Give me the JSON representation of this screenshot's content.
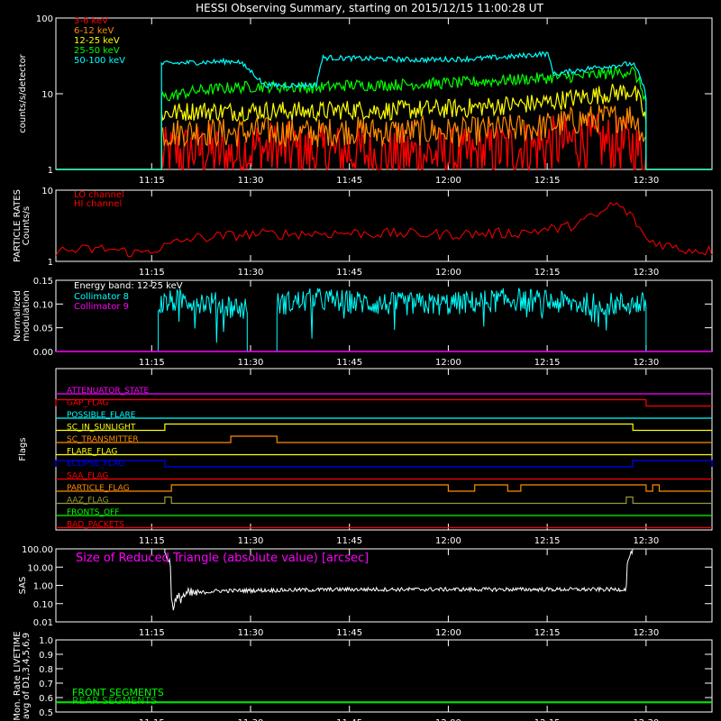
{
  "title": "HESSI Observing Summary, starting on 2015/12/15 11:00:28 UT",
  "time_ticks": [
    "11:15",
    "11:30",
    "11:45",
    "12:00",
    "12:15",
    "12:30"
  ],
  "colors": {
    "background": "#000000",
    "axes": "#ffffff",
    "red": "#ff0000",
    "orange": "#ff8c00",
    "yellow": "#ffff00",
    "green": "#00ff00",
    "cyan": "#00ffff",
    "magenta": "#ff00ff",
    "blue": "#0000ff",
    "sas_label": "#ff00ff",
    "livetime_label": "#00ff00"
  },
  "chart_data": [
    {
      "type": "line",
      "panel": "count_rates",
      "ylabel": "counts/s/detector",
      "yscale": "log",
      "ylim": [
        1,
        100
      ],
      "y_tick_labels": [
        "1",
        "10",
        "100"
      ],
      "xlim": [
        "11:00:28",
        "12:40"
      ],
      "grid": false,
      "legend_position": "top-left",
      "series": [
        {
          "name": "3-6 keV",
          "color": "#ff0000",
          "x": [
            "11:17",
            "11:22",
            "11:27",
            "11:31",
            "11:40",
            "11:45",
            "11:50",
            "11:56",
            "12:02",
            "12:08",
            "12:14",
            "12:20",
            "12:28",
            "12:31"
          ],
          "values": [
            1.5,
            1.8,
            1.5,
            1.9,
            1.6,
            1.7,
            1.5,
            1.6,
            1.4,
            1.8,
            2.0,
            2.4,
            2.0,
            1.0
          ]
        },
        {
          "name": "6-12 keV",
          "color": "#ff8c00",
          "x": [
            "11:17",
            "11:22",
            "11:27",
            "11:31",
            "11:40",
            "11:45",
            "11:50",
            "11:56",
            "12:02",
            "12:08",
            "12:14",
            "12:20",
            "12:28",
            "12:31"
          ],
          "values": [
            3.0,
            3.2,
            3.0,
            3.2,
            3.0,
            3.3,
            3.1,
            3.2,
            3.1,
            3.4,
            3.6,
            4.5,
            5.0,
            1.0
          ]
        },
        {
          "name": "12-25 keV",
          "color": "#ffff00",
          "x": [
            "11:17",
            "11:22",
            "11:27",
            "11:31",
            "11:40",
            "11:45",
            "11:50",
            "11:56",
            "12:02",
            "12:08",
            "12:14",
            "12:20",
            "12:28",
            "12:31"
          ],
          "values": [
            5.5,
            6.0,
            5.8,
            6.0,
            5.8,
            6.2,
            6.0,
            6.2,
            6.4,
            7.0,
            7.5,
            9.0,
            11.0,
            1.0
          ]
        },
        {
          "name": "25-50 keV",
          "color": "#00ff00",
          "x": [
            "11:17",
            "11:22",
            "11:27",
            "11:31",
            "11:40",
            "11:45",
            "11:50",
            "11:56",
            "12:02",
            "12:08",
            "12:14",
            "12:20",
            "12:28",
            "12:31"
          ],
          "values": [
            9.0,
            11.0,
            12.0,
            12.5,
            12.0,
            13.0,
            13.0,
            13.5,
            14.0,
            15.0,
            16.0,
            17.0,
            20.0,
            1.0
          ]
        },
        {
          "name": "50-100 keV",
          "color": "#00ffff",
          "x": [
            "11:17",
            "11:22",
            "11:28",
            "11:32",
            "11:40",
            "11:41",
            "11:48",
            "11:56",
            "12:04",
            "12:10",
            "12:15",
            "12:16",
            "12:22",
            "12:28",
            "12:31"
          ],
          "values": [
            25,
            26,
            27,
            13,
            13,
            30,
            29,
            28,
            29,
            31,
            34,
            18,
            22,
            25,
            1.0
          ]
        }
      ]
    },
    {
      "type": "line",
      "panel": "particle_rates",
      "ylabel": "PARTICLE RATES Counts/s",
      "yscale": "log",
      "ylim": [
        1,
        10
      ],
      "y_tick_labels": [
        "1",
        "10"
      ],
      "legend_position": "top-left",
      "series": [
        {
          "name": "LO channel",
          "color": "#ff0000",
          "x": [
            "11:01",
            "11:08",
            "11:13",
            "11:17",
            "11:21",
            "11:30",
            "11:45",
            "12:00",
            "12:10",
            "12:18",
            "12:23",
            "12:25",
            "12:27",
            "12:30",
            "12:35",
            "12:40"
          ],
          "values": [
            1.4,
            1.5,
            1.3,
            1.6,
            2.1,
            2.4,
            2.5,
            2.4,
            2.5,
            3.0,
            4.5,
            6.5,
            5.0,
            2.0,
            1.5,
            1.4
          ]
        },
        {
          "name": "HI channel",
          "color": "#ff0000",
          "x": [],
          "values": []
        }
      ]
    },
    {
      "type": "line",
      "panel": "modulation",
      "ylabel": "Normalized modulation",
      "ylim": [
        0,
        0.15
      ],
      "y_tick_labels": [
        "0.00",
        "0.05",
        "0.10",
        "0.15"
      ],
      "annotation": "Energy band: 12-25 keV",
      "legend_position": "top-left",
      "series": [
        {
          "name": "Collimator 8",
          "color": "#00ffff",
          "x": [
            "11:16",
            "11:20",
            "11:25",
            "11:29",
            "11:34",
            "11:40",
            "11:50",
            "12:00",
            "12:10",
            "12:20",
            "12:30"
          ],
          "values": [
            0.1,
            0.11,
            0.1,
            0.09,
            0.1,
            0.11,
            0.1,
            0.1,
            0.11,
            0.1,
            0.1
          ]
        },
        {
          "name": "Collimator 9",
          "color": "#ff00ff",
          "x": [
            "11:00",
            "12:40"
          ],
          "values": [
            0.0,
            0.0
          ]
        }
      ]
    },
    {
      "type": "line",
      "panel": "flags",
      "ylabel": "Flags",
      "flags": [
        {
          "name": "ATTENUATOR_STATE",
          "color": "#ff00ff",
          "on": []
        },
        {
          "name": "GAP_FLAG",
          "color": "#ff0000",
          "on": [
            [
              "11:00",
              "12:30"
            ]
          ]
        },
        {
          "name": "POSSIBLE_FLARE",
          "color": "#00ffff",
          "on": []
        },
        {
          "name": "SC_IN_SUNLIGHT",
          "color": "#ffff00",
          "on": [
            [
              "11:17",
              "12:28"
            ]
          ]
        },
        {
          "name": "SC_TRANSMITTER",
          "color": "#ff8c00",
          "on": [
            [
              "11:27",
              "11:34"
            ]
          ]
        },
        {
          "name": "FLARE_FLAG",
          "color": "#ffff00",
          "on": []
        },
        {
          "name": "ECLIPSE_FLAG",
          "color": "#0000ff",
          "on": [
            [
              "11:00",
              "11:17"
            ],
            [
              "12:28",
              "12:40"
            ]
          ]
        },
        {
          "name": "SAA_FLAG",
          "color": "#ff0000",
          "on": []
        },
        {
          "name": "PARTICLE_FLAG",
          "color": "#ff8c00",
          "on": [
            [
              "11:18",
              "12:00"
            ],
            [
              "12:04",
              "12:09"
            ],
            [
              "12:11",
              "12:30"
            ],
            [
              "12:31",
              "12:32"
            ]
          ]
        },
        {
          "name": "AAZ_FLAG",
          "color": "#999933",
          "on": [
            [
              "11:17",
              "11:18"
            ],
            [
              "12:27",
              "12:28"
            ]
          ]
        },
        {
          "name": "FRONTS_OFF",
          "color": "#00ff00",
          "on": []
        },
        {
          "name": "BAD_PACKETS",
          "color": "#ff0000",
          "on": []
        }
      ]
    },
    {
      "type": "line",
      "panel": "sas",
      "ylabel": "SAS",
      "yscale": "log",
      "ylim": [
        0.01,
        100
      ],
      "y_tick_labels": [
        "0.01",
        "0.10",
        "1.00",
        "10.00",
        "100.00"
      ],
      "annotation": "Size of Reduced Triangle (absolute value) [arcsec]",
      "series": [
        {
          "name": "",
          "color": "#ffffff",
          "x": [
            "11:17",
            "11:18",
            "11:20",
            "11:25",
            "11:35",
            "11:45",
            "12:00",
            "12:15",
            "12:27",
            "12:28"
          ],
          "values": [
            60,
            0.05,
            0.3,
            0.5,
            0.55,
            0.6,
            0.6,
            0.6,
            0.6,
            80
          ]
        }
      ]
    },
    {
      "type": "line",
      "panel": "livetime",
      "ylabel": "Mon. Rate LIVETIME avg of D1,3,4,5,6,9",
      "ylim": [
        0.5,
        1.0
      ],
      "y_tick_labels": [
        "0.5",
        "0.6",
        "0.7",
        "0.8",
        "0.9",
        "1.0"
      ],
      "series": [
        {
          "name": "FRONT SEGMENTS",
          "color": "#00ff00",
          "x": [
            "11:00",
            "12:40"
          ],
          "values": [
            0.57,
            0.57
          ]
        },
        {
          "name": "REAR SEGMENTS",
          "color": "#00ff00",
          "x": [
            "11:00",
            "12:40"
          ],
          "values": [
            0.57,
            0.57
          ]
        }
      ]
    }
  ]
}
